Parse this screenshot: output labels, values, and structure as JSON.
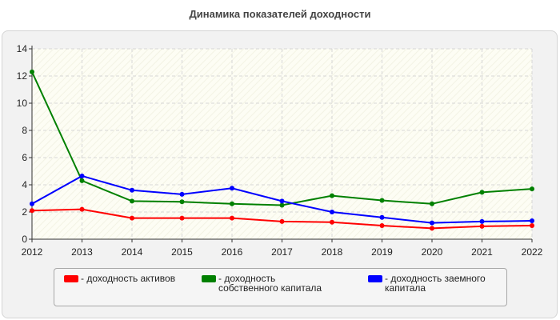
{
  "chart_data": {
    "type": "line",
    "title": "Динамика показателей доходности",
    "xlabel": "",
    "ylabel": "",
    "x": [
      "2012",
      "2013",
      "2014",
      "2015",
      "2016",
      "2017",
      "2018",
      "2019",
      "2020",
      "2021",
      "2022"
    ],
    "ylim": [
      0,
      14
    ],
    "yticks": [
      "0",
      "2",
      "4",
      "6",
      "8",
      "10",
      "12",
      "14"
    ],
    "grid": true,
    "legend_position": "bottom",
    "series": [
      {
        "name": "- доходность активов",
        "color": "#ff0000",
        "values": [
          2.1,
          2.2,
          1.55,
          1.55,
          1.55,
          1.3,
          1.25,
          1.0,
          0.8,
          0.95,
          1.0
        ]
      },
      {
        "name": "- доходность собственного капитала",
        "color": "#008000",
        "values": [
          12.3,
          4.3,
          2.8,
          2.75,
          2.6,
          2.5,
          3.2,
          2.85,
          2.6,
          3.45,
          3.7
        ]
      },
      {
        "name": "- доходность заемного капитала",
        "color": "#0000ff",
        "values": [
          2.6,
          4.65,
          3.6,
          3.3,
          3.75,
          2.8,
          2.0,
          1.6,
          1.2,
          1.3,
          1.35
        ]
      }
    ]
  }
}
